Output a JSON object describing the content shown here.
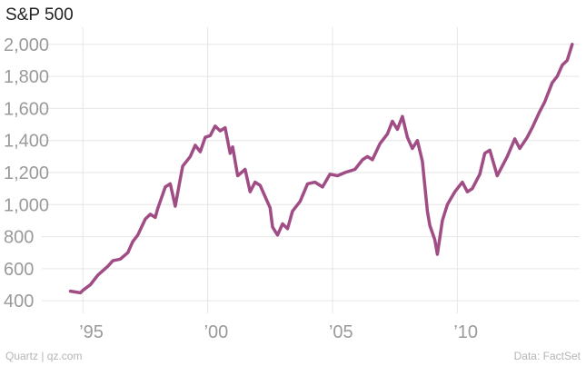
{
  "title": "S&P 500",
  "footer": {
    "left": "Quartz | qz.com",
    "right": "Data: FactSet"
  },
  "colors": {
    "line": "#a04d86",
    "grid": "#e6e6e6",
    "tick": "#9a9a9a"
  },
  "chart_data": {
    "type": "line",
    "title": "S&P 500",
    "xlabel": "",
    "ylabel": "",
    "ylim": [
      350,
      2050
    ],
    "xlim": [
      1993.5,
      2014.9
    ],
    "y_ticks": [
      {
        "value": 400,
        "label": "400"
      },
      {
        "value": 600,
        "label": "600"
      },
      {
        "value": 800,
        "label": "800"
      },
      {
        "value": 1000,
        "label": "1,000"
      },
      {
        "value": 1200,
        "label": "1,200"
      },
      {
        "value": 1400,
        "label": "1,400"
      },
      {
        "value": 1600,
        "label": "1,600"
      },
      {
        "value": 1800,
        "label": "1,800"
      },
      {
        "value": 2000,
        "label": "2,000"
      }
    ],
    "x_ticks": [
      {
        "value": 1995,
        "label": "’95"
      },
      {
        "value": 2000,
        "label": "’00"
      },
      {
        "value": 2005,
        "label": "’05"
      },
      {
        "value": 2010,
        "label": "’10"
      }
    ],
    "grid": true,
    "series": [
      {
        "x": [
          1994.5,
          1994.7,
          1994.9,
          1995.0,
          1995.3,
          1995.6,
          1996.0,
          1996.2,
          1996.5,
          1996.8,
          1997.0,
          1997.2,
          1997.5,
          1997.7,
          1997.9,
          1998.0,
          1998.3,
          1998.5,
          1998.7,
          1998.9,
          1999.0,
          1999.3,
          1999.5,
          1999.7,
          1999.9,
          2000.1,
          2000.3,
          2000.5,
          2000.7,
          2000.9,
          2001.0,
          2001.2,
          2001.5,
          2001.7,
          2001.9,
          2002.1,
          2002.3,
          2002.5,
          2002.6,
          2002.8,
          2003.0,
          2003.2,
          2003.4,
          2003.7,
          2004.0,
          2004.3,
          2004.6,
          2004.9,
          2005.2,
          2005.5,
          2005.9,
          2006.2,
          2006.4,
          2006.6,
          2006.9,
          2007.2,
          2007.4,
          2007.6,
          2007.8,
          2008.0,
          2008.2,
          2008.4,
          2008.6,
          2008.8,
          2008.9,
          2009.1,
          2009.2,
          2009.4,
          2009.6,
          2009.9,
          2010.2,
          2010.4,
          2010.6,
          2010.9,
          2011.1,
          2011.3,
          2011.6,
          2011.8,
          2012.0,
          2012.3,
          2012.5,
          2012.8,
          2013.0,
          2013.3,
          2013.5,
          2013.8,
          2014.0,
          2014.2,
          2014.4,
          2014.6
        ],
        "values": [
          460,
          455,
          450,
          465,
          500,
          560,
          615,
          650,
          660,
          700,
          770,
          810,
          910,
          940,
          920,
          975,
          1110,
          1130,
          990,
          1160,
          1240,
          1300,
          1370,
          1330,
          1420,
          1430,
          1490,
          1460,
          1480,
          1320,
          1360,
          1180,
          1220,
          1080,
          1140,
          1120,
          1050,
          980,
          860,
          810,
          880,
          850,
          960,
          1020,
          1130,
          1140,
          1110,
          1190,
          1180,
          1200,
          1220,
          1280,
          1300,
          1280,
          1380,
          1440,
          1520,
          1470,
          1550,
          1420,
          1350,
          1400,
          1270,
          960,
          870,
          780,
          690,
          900,
          1000,
          1080,
          1140,
          1080,
          1100,
          1190,
          1320,
          1340,
          1180,
          1240,
          1300,
          1410,
          1350,
          1420,
          1480,
          1580,
          1640,
          1760,
          1800,
          1870,
          1900,
          2000
        ]
      }
    ]
  }
}
